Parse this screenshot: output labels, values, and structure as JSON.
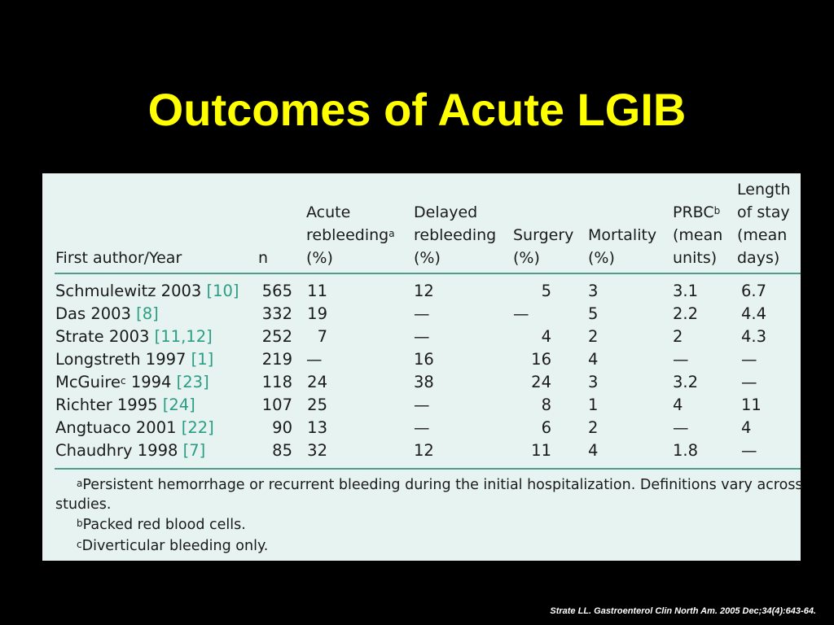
{
  "title": "Outcomes of Acute LGIB",
  "table": {
    "headers": {
      "author": "First author/Year",
      "n": "n",
      "acute": [
        "Acute",
        "rebleeding",
        "a",
        "(%)"
      ],
      "delayed": [
        "Delayed",
        "rebleeding",
        "(%)"
      ],
      "surgery": [
        "Surgery",
        "(%)"
      ],
      "mortality": [
        "Mortality",
        "(%)"
      ],
      "prbc": [
        "PRBC",
        "b",
        "(mean",
        "units)"
      ],
      "los": [
        "Length",
        "of stay",
        "(mean",
        "days)"
      ]
    },
    "rows": [
      {
        "author": "Schmulewitz 2003",
        "sup": "",
        "ref": "[10]",
        "n": "565",
        "acute": "11",
        "delayed": "12",
        "surgery": "5",
        "mortality": "3",
        "prbc": "3.1",
        "los": "6.7"
      },
      {
        "author": "Das 2003",
        "sup": "",
        "ref": "[8]",
        "n": "332",
        "acute": "19",
        "delayed": "—",
        "surgery": "—",
        "mortality": "5",
        "prbc": "2.2",
        "los": "4.4"
      },
      {
        "author": "Strate 2003",
        "sup": "",
        "ref": "[11,12]",
        "n": "252",
        "acute": "7",
        "delayed": "—",
        "surgery": "4",
        "mortality": "2",
        "prbc": "2",
        "los": "4.3"
      },
      {
        "author": "Longstreth 1997",
        "sup": "",
        "ref": "[1]",
        "n": "219",
        "acute": "—",
        "delayed": "16",
        "surgery": "16",
        "mortality": "4",
        "prbc": "—",
        "los": "—"
      },
      {
        "author": "McGuire",
        "sup": "c",
        "after": " 1994",
        "ref": "[23]",
        "n": "118",
        "acute": "24",
        "delayed": "38",
        "surgery": "24",
        "mortality": "3",
        "prbc": "3.2",
        "los": "—"
      },
      {
        "author": "Richter 1995",
        "sup": "",
        "ref": "[24]",
        "n": "107",
        "acute": "25",
        "delayed": "—",
        "surgery": "8",
        "mortality": "1",
        "prbc": "4",
        "los": "11"
      },
      {
        "author": "Angtuaco 2001",
        "sup": "",
        "ref": "[22]",
        "n": "90",
        "acute": "13",
        "delayed": "—",
        "surgery": "6",
        "mortality": "2",
        "prbc": "—",
        "los": "4"
      },
      {
        "author": "Chaudhry 1998",
        "sup": "",
        "ref": "[7]",
        "n": "85",
        "acute": "32",
        "delayed": "12",
        "surgery": "11",
        "mortality": "4",
        "prbc": "1.8",
        "los": "—"
      }
    ],
    "footnotes": [
      {
        "mark": "a",
        "text": "Persistent hemorrhage or recurrent bleeding during the initial hospitalization. Definitions vary across",
        "cont": "studies."
      },
      {
        "mark": "b",
        "text": "Packed red blood cells."
      },
      {
        "mark": "c",
        "text": "Diverticular bleeding only."
      }
    ]
  },
  "citation": "Strate LL. Gastroenterol Clin North Am. 2005 Dec;34(4):643-64.",
  "colors": {
    "title": "#ffff00",
    "background": "#000000",
    "table_bg": "#e7f3f0",
    "rule": "#4f9e8d",
    "reference": "#2a9d86"
  }
}
